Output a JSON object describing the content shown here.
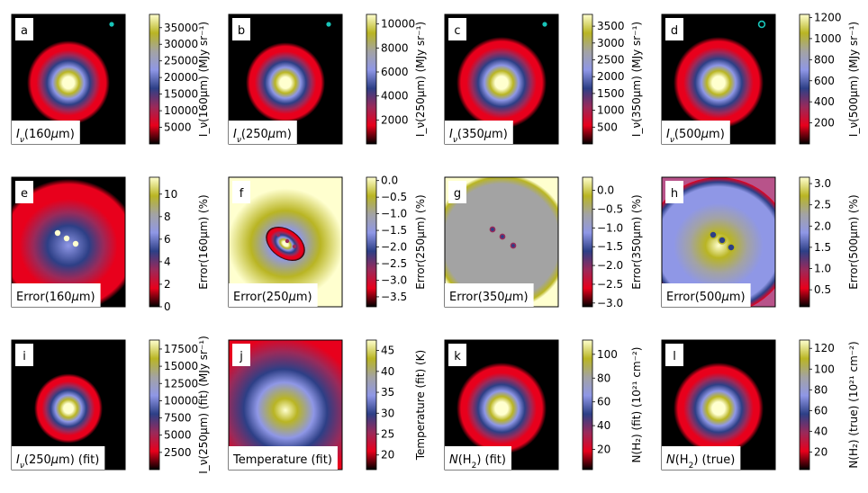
{
  "figure": {
    "colormap_stops": [
      "#000000",
      "#e8001c",
      "#9a2a5a",
      "#2d3f86",
      "#8f97e6",
      "#a3a3a3",
      "#b9b523",
      "#ffffcf"
    ]
  },
  "chart_data": [
    {
      "type": "heatmap",
      "panel_letter": "a",
      "label": "I_ν(160μm)",
      "label_parts": [
        {
          "t": "I",
          "i": true
        },
        {
          "t": "ν",
          "i": true,
          "sub": true
        },
        {
          "t": "(160"
        },
        {
          "t": "μ",
          "i": true
        },
        {
          "t": "m)"
        }
      ],
      "colorbar_label": "I_ν(160μm) (MJy sr⁻¹)",
      "colorbar_ticks": [
        "5000",
        "10000",
        "15000",
        "20000",
        "25000",
        "30000",
        "35000"
      ],
      "colorbar_tick_values": [
        5000,
        10000,
        15000,
        20000,
        25000,
        30000,
        35000
      ],
      "colorbar_range": [
        0,
        39000
      ],
      "beam_marker": true
    },
    {
      "type": "heatmap",
      "panel_letter": "b",
      "label": "I_ν(250μm)",
      "label_parts": [
        {
          "t": "I",
          "i": true
        },
        {
          "t": "ν",
          "i": true,
          "sub": true
        },
        {
          "t": "(250"
        },
        {
          "t": "μ",
          "i": true
        },
        {
          "t": "m)"
        }
      ],
      "colorbar_label": "I_ν(250μm) (MJy sr⁻¹)",
      "colorbar_ticks": [
        "2000",
        "4000",
        "6000",
        "8000",
        "10000"
      ],
      "colorbar_tick_values": [
        2000,
        4000,
        6000,
        8000,
        10000
      ],
      "colorbar_range": [
        0,
        10800
      ],
      "beam_marker": true
    },
    {
      "type": "heatmap",
      "panel_letter": "c",
      "label": "I_ν(350μm)",
      "label_parts": [
        {
          "t": "I",
          "i": true
        },
        {
          "t": "ν",
          "i": true,
          "sub": true
        },
        {
          "t": "(350"
        },
        {
          "t": "μ",
          "i": true
        },
        {
          "t": "m)"
        }
      ],
      "colorbar_label": "I_ν(350μm) (MJy sr⁻¹)",
      "colorbar_ticks": [
        "500",
        "1000",
        "1500",
        "2000",
        "2500",
        "3000",
        "3500"
      ],
      "colorbar_tick_values": [
        500,
        1000,
        1500,
        2000,
        2500,
        3000,
        3500
      ],
      "colorbar_range": [
        0,
        3850
      ],
      "beam_marker": true
    },
    {
      "type": "heatmap",
      "panel_letter": "d",
      "label": "I_ν(500μm)",
      "label_parts": [
        {
          "t": "I",
          "i": true
        },
        {
          "t": "ν",
          "i": true,
          "sub": true
        },
        {
          "t": "(500"
        },
        {
          "t": "μ",
          "i": true
        },
        {
          "t": "m)"
        }
      ],
      "colorbar_label": "I_ν(500μm) (MJy sr⁻¹)",
      "colorbar_ticks": [
        "200",
        "400",
        "600",
        "800",
        "1000",
        "1200"
      ],
      "colorbar_tick_values": [
        200,
        400,
        600,
        800,
        1000,
        1200
      ],
      "colorbar_range": [
        0,
        1230
      ],
      "beam_marker": true
    },
    {
      "type": "heatmap",
      "panel_letter": "e",
      "label": "Error(160μm)",
      "label_parts": [
        {
          "t": "Error(160"
        },
        {
          "t": "μ",
          "i": true
        },
        {
          "t": "m)"
        }
      ],
      "colorbar_label": "Error(160μm) (%)",
      "colorbar_ticks": [
        "0",
        "2",
        "4",
        "6",
        "8",
        "10"
      ],
      "colorbar_tick_values": [
        0,
        2,
        4,
        6,
        8,
        10
      ],
      "colorbar_range": [
        0,
        11.5
      ],
      "beam_marker": false
    },
    {
      "type": "heatmap",
      "panel_letter": "f",
      "label": "Error(250μm)",
      "label_parts": [
        {
          "t": "Error(250"
        },
        {
          "t": "μ",
          "i": true
        },
        {
          "t": "m)"
        }
      ],
      "colorbar_label": "Error(250μm) (%)",
      "colorbar_ticks": [
        "−3.5",
        "−3.0",
        "−2.5",
        "−2.0",
        "−1.5",
        "−1.0",
        "−0.5",
        "0.0"
      ],
      "colorbar_tick_values": [
        -3.5,
        -3.0,
        -2.5,
        -2.0,
        -1.5,
        -1.0,
        -0.5,
        0.0
      ],
      "colorbar_range": [
        -3.8,
        0.1
      ],
      "beam_marker": false
    },
    {
      "type": "heatmap",
      "panel_letter": "g",
      "label": "Error(350μm)",
      "label_parts": [
        {
          "t": "Error(350"
        },
        {
          "t": "μ",
          "i": true
        },
        {
          "t": "m)"
        }
      ],
      "colorbar_label": "Error(350μm) (%)",
      "colorbar_ticks": [
        "−3.0",
        "−2.5",
        "−2.0",
        "−1.5",
        "−1.0",
        "−0.5",
        "0.0"
      ],
      "colorbar_tick_values": [
        -3.0,
        -2.5,
        -2.0,
        -1.5,
        -1.0,
        -0.5,
        0.0
      ],
      "colorbar_range": [
        -3.1,
        0.35
      ],
      "beam_marker": false
    },
    {
      "type": "heatmap",
      "panel_letter": "h",
      "label": "Error(500μm)",
      "label_parts": [
        {
          "t": "Error(500"
        },
        {
          "t": "μ",
          "i": true
        },
        {
          "t": "m)"
        }
      ],
      "colorbar_label": "Error(500μm) (%)",
      "colorbar_ticks": [
        "0.5",
        "1.0",
        "1.5",
        "2.0",
        "2.5",
        "3.0"
      ],
      "colorbar_tick_values": [
        0.5,
        1.0,
        1.5,
        2.0,
        2.5,
        3.0
      ],
      "colorbar_range": [
        0.1,
        3.15
      ],
      "beam_marker": false
    },
    {
      "type": "heatmap",
      "panel_letter": "i",
      "label": "I_ν(250μm) (fit)",
      "label_parts": [
        {
          "t": "I",
          "i": true
        },
        {
          "t": "ν",
          "i": true,
          "sub": true
        },
        {
          "t": "(250"
        },
        {
          "t": "μ",
          "i": true
        },
        {
          "t": "m) (fit)"
        }
      ],
      "colorbar_label": "I_ν(250μm) (fit) (MJy sr⁻¹)",
      "colorbar_ticks": [
        "2500",
        "5000",
        "7500",
        "10000",
        "12500",
        "15000",
        "17500"
      ],
      "colorbar_tick_values": [
        2500,
        5000,
        7500,
        10000,
        12500,
        15000,
        17500
      ],
      "colorbar_range": [
        0,
        18800
      ],
      "beam_marker": false
    },
    {
      "type": "heatmap",
      "panel_letter": "j",
      "label": "Temperature (fit)",
      "label_parts": [
        {
          "t": "Temperature (fit)"
        }
      ],
      "colorbar_label": "Temperature (fit) (K)",
      "colorbar_ticks": [
        "20",
        "25",
        "30",
        "35",
        "40",
        "45"
      ],
      "colorbar_tick_values": [
        20,
        25,
        30,
        35,
        40,
        45
      ],
      "colorbar_range": [
        16.5,
        47.5
      ],
      "beam_marker": false
    },
    {
      "type": "heatmap",
      "panel_letter": "k",
      "label": "N(H₂) (fit)",
      "label_parts": [
        {
          "t": "N",
          "i": true
        },
        {
          "t": "(H"
        },
        {
          "t": "2",
          "sub": true
        },
        {
          "t": ") (fit)"
        }
      ],
      "colorbar_label": "N(H₂) (fit) (10²¹ cm⁻²)",
      "colorbar_ticks": [
        "20",
        "40",
        "60",
        "80",
        "100"
      ],
      "colorbar_tick_values": [
        20,
        40,
        60,
        80,
        100
      ],
      "colorbar_range": [
        3,
        112
      ],
      "beam_marker": false
    },
    {
      "type": "heatmap",
      "panel_letter": "l",
      "label": "N(H₂) (true)",
      "label_parts": [
        {
          "t": "N",
          "i": true
        },
        {
          "t": "(H"
        },
        {
          "t": "2",
          "sub": true
        },
        {
          "t": ") (true)"
        }
      ],
      "colorbar_label": "N(H₂) (true) (10²¹ cm⁻²)",
      "colorbar_ticks": [
        "20",
        "40",
        "60",
        "80",
        "100",
        "120"
      ],
      "colorbar_tick_values": [
        20,
        40,
        60,
        80,
        100,
        120
      ],
      "colorbar_range": [
        3,
        128
      ],
      "beam_marker": false
    }
  ]
}
